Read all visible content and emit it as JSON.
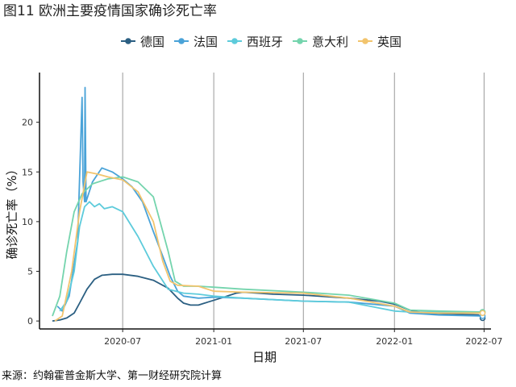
{
  "chart_data": {
    "type": "line",
    "title": "图11 欧洲主要疫情国家确诊死亡率",
    "xlabel": "日期",
    "ylabel": "确诊死亡率（%）",
    "source": "来源：约翰霍普金斯大学、第一财经研究院计算",
    "x_range": [
      "2020-01-15",
      "2022-07-15"
    ],
    "ylim": [
      -0.8,
      25
    ],
    "x_ticks": [
      {
        "date": "2020-07-01",
        "label": "2020-07"
      },
      {
        "date": "2021-01-01",
        "label": "2021-01"
      },
      {
        "date": "2021-07-01",
        "label": "2021-07"
      },
      {
        "date": "2022-01-01",
        "label": "2022-01"
      },
      {
        "date": "2022-07-01",
        "label": "2022-07"
      }
    ],
    "y_ticks": [
      0,
      5,
      10,
      15,
      20
    ],
    "grid": "vertical",
    "legend_position": "top",
    "series": [
      {
        "name": "德国",
        "color": "#2b5f82",
        "points": [
          [
            "2020-02-10",
            0
          ],
          [
            "2020-02-25",
            0.1
          ],
          [
            "2020-03-10",
            0.3
          ],
          [
            "2020-03-25",
            0.8
          ],
          [
            "2020-04-05",
            1.8
          ],
          [
            "2020-04-20",
            3.2
          ],
          [
            "2020-05-05",
            4.2
          ],
          [
            "2020-05-20",
            4.6
          ],
          [
            "2020-06-10",
            4.7
          ],
          [
            "2020-07-01",
            4.7
          ],
          [
            "2020-08-01",
            4.5
          ],
          [
            "2020-09-01",
            4.1
          ],
          [
            "2020-10-01",
            3.3
          ],
          [
            "2020-10-20",
            2.3
          ],
          [
            "2020-11-01",
            1.8
          ],
          [
            "2020-11-15",
            1.6
          ],
          [
            "2020-12-01",
            1.6
          ],
          [
            "2020-12-20",
            1.9
          ],
          [
            "2021-01-15",
            2.3
          ],
          [
            "2021-02-15",
            2.8
          ],
          [
            "2021-03-01",
            2.9
          ],
          [
            "2021-05-01",
            2.7
          ],
          [
            "2021-07-01",
            2.6
          ],
          [
            "2021-10-01",
            2.3
          ],
          [
            "2021-12-01",
            2.0
          ],
          [
            "2022-01-01",
            1.7
          ],
          [
            "2022-02-01",
            1.1
          ],
          [
            "2022-03-01",
            0.8
          ],
          [
            "2022-05-01",
            0.7
          ],
          [
            "2022-06-20",
            0.6
          ],
          [
            "2022-06-28",
            0.3
          ]
        ]
      },
      {
        "name": "法国",
        "color": "#4aa3d8",
        "points": [
          [
            "2020-02-20",
            1.5
          ],
          [
            "2020-03-01",
            1.0
          ],
          [
            "2020-03-15",
            2.5
          ],
          [
            "2020-04-01",
            8.0
          ],
          [
            "2020-04-10",
            22.5
          ],
          [
            "2020-04-12",
            14.0
          ],
          [
            "2020-04-15",
            12.0
          ],
          [
            "2020-04-16",
            23.5
          ],
          [
            "2020-04-18",
            12.0
          ],
          [
            "2020-05-01",
            14.0
          ],
          [
            "2020-05-20",
            15.4
          ],
          [
            "2020-06-10",
            15.0
          ],
          [
            "2020-07-01",
            14.3
          ],
          [
            "2020-07-20",
            13.5
          ],
          [
            "2020-08-10",
            12.0
          ],
          [
            "2020-09-01",
            9.0
          ],
          [
            "2020-09-20",
            6.5
          ],
          [
            "2020-10-05",
            4.5
          ],
          [
            "2020-10-20",
            3.0
          ],
          [
            "2020-11-01",
            2.5
          ],
          [
            "2020-12-01",
            2.3
          ],
          [
            "2021-01-01",
            2.4
          ],
          [
            "2021-03-01",
            2.3
          ],
          [
            "2021-07-01",
            2.0
          ],
          [
            "2021-10-01",
            1.9
          ],
          [
            "2022-01-01",
            1.5
          ],
          [
            "2022-02-01",
            0.8
          ],
          [
            "2022-04-01",
            0.6
          ],
          [
            "2022-06-28",
            0.5
          ]
        ]
      },
      {
        "name": "西班牙",
        "color": "#5dcbdb",
        "points": [
          [
            "2020-02-25",
            1.0
          ],
          [
            "2020-03-10",
            2.0
          ],
          [
            "2020-03-25",
            5.0
          ],
          [
            "2020-04-05",
            9.5
          ],
          [
            "2020-04-15",
            11.5
          ],
          [
            "2020-04-25",
            12.0
          ],
          [
            "2020-05-05",
            11.5
          ],
          [
            "2020-05-15",
            11.8
          ],
          [
            "2020-05-25",
            11.3
          ],
          [
            "2020-06-10",
            11.5
          ],
          [
            "2020-07-01",
            11.0
          ],
          [
            "2020-08-01",
            8.5
          ],
          [
            "2020-09-01",
            5.5
          ],
          [
            "2020-10-01",
            3.2
          ],
          [
            "2020-11-01",
            2.8
          ],
          [
            "2020-12-01",
            2.7
          ],
          [
            "2021-01-01",
            2.5
          ],
          [
            "2021-03-01",
            2.3
          ],
          [
            "2021-07-01",
            2.0
          ],
          [
            "2021-10-01",
            1.9
          ],
          [
            "2022-01-01",
            1.0
          ],
          [
            "2022-02-01",
            0.9
          ],
          [
            "2022-06-28",
            0.9
          ]
        ]
      },
      {
        "name": "意大利",
        "color": "#74d4ad",
        "points": [
          [
            "2020-02-10",
            0.5
          ],
          [
            "2020-02-25",
            2.5
          ],
          [
            "2020-03-10",
            7.0
          ],
          [
            "2020-03-25",
            11.0
          ],
          [
            "2020-04-10",
            12.8
          ],
          [
            "2020-05-01",
            13.8
          ],
          [
            "2020-06-01",
            14.3
          ],
          [
            "2020-07-01",
            14.5
          ],
          [
            "2020-08-01",
            14.0
          ],
          [
            "2020-09-01",
            12.5
          ],
          [
            "2020-10-01",
            7.0
          ],
          [
            "2020-10-15",
            4.0
          ],
          [
            "2020-11-01",
            3.5
          ],
          [
            "2020-12-01",
            3.5
          ],
          [
            "2021-01-01",
            3.4
          ],
          [
            "2021-03-01",
            3.2
          ],
          [
            "2021-07-01",
            2.9
          ],
          [
            "2021-10-01",
            2.6
          ],
          [
            "2022-01-01",
            1.8
          ],
          [
            "2022-02-01",
            1.1
          ],
          [
            "2022-04-01",
            1.0
          ],
          [
            "2022-06-28",
            0.9
          ]
        ]
      },
      {
        "name": "英国",
        "color": "#f2c46d",
        "points": [
          [
            "2020-02-15",
            0
          ],
          [
            "2020-03-01",
            0.5
          ],
          [
            "2020-03-20",
            5.0
          ],
          [
            "2020-04-05",
            11.0
          ],
          [
            "2020-04-20",
            15.0
          ],
          [
            "2020-05-10",
            14.8
          ],
          [
            "2020-06-01",
            14.5
          ],
          [
            "2020-07-01",
            14.2
          ],
          [
            "2020-08-01",
            13.0
          ],
          [
            "2020-09-01",
            10.0
          ],
          [
            "2020-09-20",
            6.0
          ],
          [
            "2020-10-05",
            4.0
          ],
          [
            "2020-10-20",
            3.6
          ],
          [
            "2020-12-01",
            3.5
          ],
          [
            "2021-01-01",
            3.0
          ],
          [
            "2021-03-01",
            2.9
          ],
          [
            "2021-07-01",
            2.8
          ],
          [
            "2021-10-01",
            2.3
          ],
          [
            "2022-01-01",
            1.5
          ],
          [
            "2022-02-01",
            0.9
          ],
          [
            "2022-04-01",
            0.8
          ],
          [
            "2022-06-28",
            0.8
          ]
        ]
      }
    ]
  }
}
